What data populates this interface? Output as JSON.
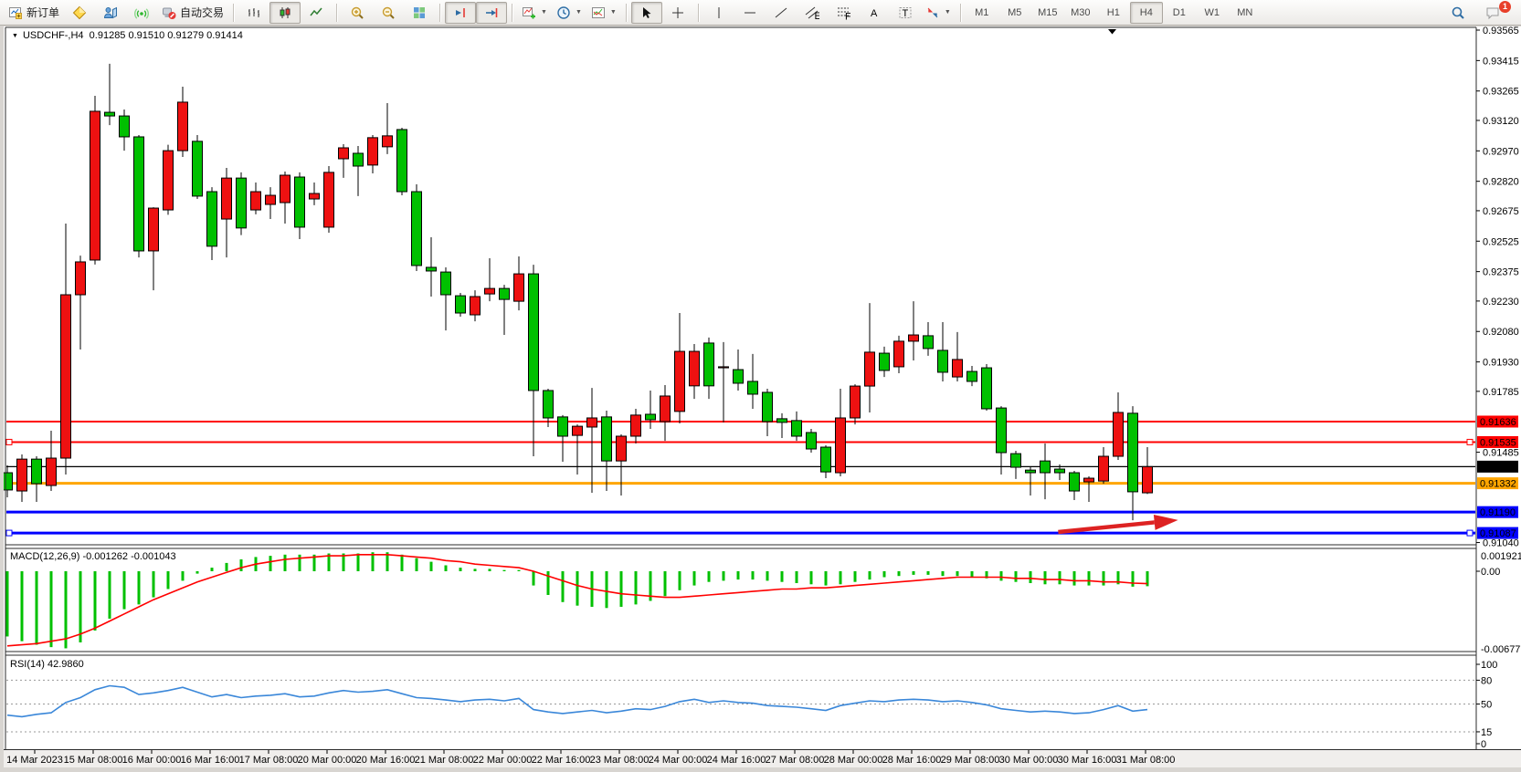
{
  "toolbar": {
    "groups": [
      [
        {
          "name": "new-order-button",
          "icon": "new-order",
          "label": "新订单"
        },
        {
          "name": "gold-chart-button",
          "icon": "gold"
        },
        {
          "name": "market-watch-button",
          "icon": "market-watch"
        },
        {
          "name": "signals-button",
          "icon": "signals"
        },
        {
          "name": "autotrading-button",
          "icon": "autotrade",
          "label": "自动交易"
        }
      ],
      [
        {
          "name": "bar-chart-button",
          "icon": "chart-bars"
        },
        {
          "name": "candlestick-chart-button",
          "icon": "chart-candles",
          "active": true
        },
        {
          "name": "line-chart-button",
          "icon": "chart-line"
        }
      ],
      [
        {
          "name": "zoom-in-button",
          "icon": "zoom-in"
        },
        {
          "name": "zoom-out-button",
          "icon": "zoom-out"
        },
        {
          "name": "tile-windows-button",
          "icon": "tile-windows"
        }
      ],
      [
        {
          "name": "chart-shift-button",
          "icon": "chart-shift",
          "active": true
        },
        {
          "name": "auto-scroll-button",
          "icon": "auto-scroll",
          "active": true
        }
      ],
      [
        {
          "name": "indicators-button",
          "icon": "indicators",
          "dropdown": true
        },
        {
          "name": "periods-button",
          "icon": "clock",
          "dropdown": true
        },
        {
          "name": "templates-button",
          "icon": "template",
          "dropdown": true
        }
      ],
      [
        {
          "name": "cursor-button",
          "icon": "cursor",
          "active": true
        },
        {
          "name": "crosshair-button",
          "icon": "crosshair"
        }
      ],
      [
        {
          "name": "vertical-line-button",
          "icon": "vline"
        },
        {
          "name": "horizontal-line-button",
          "icon": "hline"
        },
        {
          "name": "trendline-button",
          "icon": "trendline"
        },
        {
          "name": "equidistant-channel-button",
          "icon": "channel"
        },
        {
          "name": "fibonacci-button",
          "icon": "fibo"
        },
        {
          "name": "text-button",
          "icon": "text"
        },
        {
          "name": "text-label-button",
          "icon": "label"
        },
        {
          "name": "arrows-button",
          "icon": "arrows",
          "dropdown": true
        }
      ]
    ],
    "timeframes": [
      "M1",
      "M5",
      "M15",
      "M30",
      "H1",
      "H4",
      "D1",
      "W1",
      "MN"
    ],
    "active_timeframe": "H4",
    "right": [
      {
        "name": "search-button",
        "icon": "search"
      },
      {
        "name": "notifications-button",
        "icon": "chat",
        "badge": "1"
      }
    ]
  },
  "chart": {
    "title_text": "USDCHF-,H4  0.91285 0.91510 0.91279 0.91414",
    "macd_label": "MACD(12,26,9) -0.001262 -0.001043",
    "rsi_label": "RSI(14) 42.9860"
  },
  "chart_data": {
    "type": "candlestick",
    "symbol": "USDCHF-",
    "period": "H4",
    "last_bar": {
      "open": 0.91285,
      "high": 0.9151,
      "low": 0.91279,
      "close": 0.91414
    },
    "bull_color": "#ee1111",
    "bear_color": "#00c000",
    "outline_color": "#000000",
    "price_axis": {
      "ticks": [
        "0.93565",
        "0.93415",
        "0.93265",
        "0.93120",
        "0.92970",
        "0.92820",
        "0.92675",
        "0.92525",
        "0.92375",
        "0.92230",
        "0.92080",
        "0.91930",
        "0.91785",
        "0.91485",
        "0.91040"
      ],
      "label_boxes": [
        {
          "value": "0.91636",
          "color": "#ff0000"
        },
        {
          "value": "0.91535",
          "color": "#ff0000"
        },
        {
          "value": "0.91414",
          "color": "#000000"
        },
        {
          "value": "0.91332",
          "color": "#ffa500"
        },
        {
          "value": "0.91190",
          "color": "#0000ff"
        },
        {
          "value": "0.91087",
          "color": "#0000ff"
        }
      ]
    },
    "hlines": [
      {
        "price": 0.91636,
        "color": "#ff0000",
        "width": 2,
        "selected": false
      },
      {
        "price": 0.91535,
        "color": "#ff0000",
        "width": 2,
        "selected": true
      },
      {
        "price": 0.91332,
        "color": "#ffa500",
        "width": 3,
        "selected": false
      },
      {
        "price": 0.9119,
        "color": "#0000ff",
        "width": 3,
        "selected": false
      },
      {
        "price": 0.91087,
        "color": "#0000ff",
        "width": 3,
        "selected": true
      }
    ],
    "bid_line": {
      "price": 0.91414,
      "color": "#000000"
    },
    "annotation_arrow": {
      "from_bar": 71.9,
      "from_price": 0.91092,
      "to_bar": 80.1,
      "to_price": 0.91151,
      "color": "#dd2222"
    },
    "time_labels": [
      "14 Mar 2023",
      "15 Mar 08:00",
      "16 Mar 00:00",
      "16 Mar 16:00",
      "17 Mar 08:00",
      "20 Mar 00:00",
      "20 Mar 16:00",
      "21 Mar 08:00",
      "22 Mar 00:00",
      "22 Mar 16:00",
      "23 Mar 08:00",
      "24 Mar 00:00",
      "24 Mar 16:00",
      "27 Mar 08:00",
      "28 Mar 00:00",
      "28 Mar 16:00",
      "29 Mar 08:00",
      "30 Mar 00:00",
      "30 Mar 16:00",
      "31 Mar 08:00"
    ],
    "candles": [
      [
        0.91384,
        0.9142,
        0.91263,
        0.91299
      ],
      [
        0.91294,
        0.91474,
        0.9124,
        0.91451
      ],
      [
        0.91451,
        0.91465,
        0.9124,
        0.9133
      ],
      [
        0.91321,
        0.91591,
        0.91294,
        0.91456
      ],
      [
        0.91456,
        0.92612,
        0.91375,
        0.92261
      ],
      [
        0.92261,
        0.92454,
        0.91991,
        0.92423
      ],
      [
        0.92432,
        0.93241,
        0.9241,
        0.93165
      ],
      [
        0.9316,
        0.93399,
        0.93097,
        0.93142
      ],
      [
        0.93142,
        0.93174,
        0.92971,
        0.93039
      ],
      [
        0.93039,
        0.93048,
        0.92445,
        0.92477
      ],
      [
        0.92477,
        0.92692,
        0.92283,
        0.92688
      ],
      [
        0.92679,
        0.93,
        0.92655,
        0.92971
      ],
      [
        0.92971,
        0.93286,
        0.9294,
        0.9321
      ],
      [
        0.93017,
        0.93048,
        0.92733,
        0.92747
      ],
      [
        0.92769,
        0.92791,
        0.92432,
        0.925
      ],
      [
        0.92634,
        0.92886,
        0.92445,
        0.92836
      ],
      [
        0.92836,
        0.92864,
        0.92555,
        0.9259
      ],
      [
        0.92679,
        0.92814,
        0.92657,
        0.92769
      ],
      [
        0.92706,
        0.92791,
        0.92634,
        0.92751
      ],
      [
        0.92715,
        0.92868,
        0.92612,
        0.9285
      ],
      [
        0.92841,
        0.92864,
        0.92535,
        0.92594
      ],
      [
        0.92733,
        0.92814,
        0.92702,
        0.9276
      ],
      [
        0.92594,
        0.92895,
        0.92567,
        0.92864
      ],
      [
        0.92931,
        0.93003,
        0.92837,
        0.92985
      ],
      [
        0.92958,
        0.92994,
        0.92747,
        0.92895
      ],
      [
        0.929,
        0.93048,
        0.92859,
        0.93035
      ],
      [
        0.9299,
        0.93205,
        0.92954,
        0.93044
      ],
      [
        0.93075,
        0.93084,
        0.92751,
        0.92769
      ],
      [
        0.92769,
        0.92805,
        0.92378,
        0.92405
      ],
      [
        0.92396,
        0.92544,
        0.92252,
        0.92378
      ],
      [
        0.92373,
        0.92396,
        0.92085,
        0.92261
      ],
      [
        0.92256,
        0.9227,
        0.92153,
        0.92171
      ],
      [
        0.92162,
        0.92283,
        0.9213,
        0.92252
      ],
      [
        0.92265,
        0.92441,
        0.92229,
        0.92292
      ],
      [
        0.92292,
        0.9231,
        0.92063,
        0.92238
      ],
      [
        0.92229,
        0.9245,
        0.92184,
        0.92364
      ],
      [
        0.92364,
        0.92409,
        0.91465,
        0.91789
      ],
      [
        0.91789,
        0.91798,
        0.91609,
        0.91654
      ],
      [
        0.91659,
        0.91668,
        0.91438,
        0.91564
      ],
      [
        0.91568,
        0.91622,
        0.91375,
        0.91613
      ],
      [
        0.91609,
        0.91802,
        0.91285,
        0.91654
      ],
      [
        0.91659,
        0.9169,
        0.91294,
        0.91442
      ],
      [
        0.91442,
        0.91573,
        0.91272,
        0.91564
      ],
      [
        0.91564,
        0.91699,
        0.91528,
        0.91668
      ],
      [
        0.91672,
        0.91789,
        0.916,
        0.91645
      ],
      [
        0.91636,
        0.91816,
        0.91541,
        0.91762
      ],
      [
        0.91686,
        0.92171,
        0.91627,
        0.91982
      ],
      [
        0.91812,
        0.92018,
        0.91748,
        0.91982
      ],
      [
        0.92023,
        0.9205,
        0.91748,
        0.91812
      ],
      [
        0.91901,
        0.92028,
        0.91632,
        0.91906
      ],
      [
        0.91892,
        0.91991,
        0.91789,
        0.91825
      ],
      [
        0.91834,
        0.91969,
        0.91699,
        0.91771
      ],
      [
        0.9178,
        0.91798,
        0.91564,
        0.91636
      ],
      [
        0.9165,
        0.91677,
        0.91555,
        0.91632
      ],
      [
        0.91641,
        0.91686,
        0.91541,
        0.91564
      ],
      [
        0.91582,
        0.916,
        0.91483,
        0.91501
      ],
      [
        0.9151,
        0.91519,
        0.91357,
        0.91388
      ],
      [
        0.91384,
        0.91798,
        0.91366,
        0.91654
      ],
      [
        0.91654,
        0.9182,
        0.91622,
        0.91811
      ],
      [
        0.91811,
        0.9222,
        0.91681,
        0.91978
      ],
      [
        0.91973,
        0.92005,
        0.91856,
        0.91888
      ],
      [
        0.91906,
        0.92059,
        0.91874,
        0.92032
      ],
      [
        0.92032,
        0.92229,
        0.91937,
        0.92063
      ],
      [
        0.92059,
        0.92126,
        0.9196,
        0.91996
      ],
      [
        0.91987,
        0.92126,
        0.91834,
        0.91879
      ],
      [
        0.91856,
        0.92077,
        0.91834,
        0.91942
      ],
      [
        0.91883,
        0.9191,
        0.91811,
        0.91834
      ],
      [
        0.91901,
        0.91919,
        0.9169,
        0.91699
      ],
      [
        0.91703,
        0.91712,
        0.91375,
        0.91483
      ],
      [
        0.91478,
        0.91492,
        0.91353,
        0.91411
      ],
      [
        0.91397,
        0.91415,
        0.91272,
        0.91384
      ],
      [
        0.91442,
        0.91528,
        0.91253,
        0.91384
      ],
      [
        0.91402,
        0.91425,
        0.91348,
        0.91384
      ],
      [
        0.91384,
        0.91393,
        0.91249,
        0.91294
      ],
      [
        0.91339,
        0.91366,
        0.9124,
        0.91357
      ],
      [
        0.91343,
        0.9151,
        0.9133,
        0.91465
      ],
      [
        0.91465,
        0.9178,
        0.91447,
        0.91681
      ],
      [
        0.91677,
        0.91712,
        0.9115,
        0.9129
      ],
      [
        0.91285,
        0.9151,
        0.91279,
        0.91414
      ]
    ],
    "indicators": [
      {
        "name": "MACD",
        "label": "MACD(12,26,9) -0.001262 -0.001043",
        "params": [
          12,
          26,
          9
        ],
        "macd_value": -0.001262,
        "signal_value": -0.001043,
        "axis_labels": [
          "0.001921",
          "0.00",
          "-0.006777"
        ],
        "range": [
          -0.006777,
          0.001921
        ],
        "histogram_color": "#00c000",
        "signal_color": "#ff0000",
        "histogram": [
          -0.0055,
          -0.0059,
          -0.0062,
          -0.0064,
          -0.0065,
          -0.006,
          -0.005,
          -0.004,
          -0.0032,
          -0.0028,
          -0.0022,
          -0.0015,
          -0.0008,
          -0.0002,
          0.0003,
          0.0007,
          0.001,
          0.0012,
          0.0013,
          0.0014,
          0.0014,
          0.0014,
          0.0015,
          0.0015,
          0.0015,
          0.0016,
          0.0016,
          0.0014,
          0.0011,
          0.0008,
          0.0005,
          0.0003,
          0.0002,
          0.0002,
          0.0001,
          0.0001,
          -0.0012,
          -0.002,
          -0.0026,
          -0.0029,
          -0.003,
          -0.0031,
          -0.003,
          -0.0028,
          -0.0025,
          -0.0021,
          -0.0016,
          -0.0012,
          -0.0009,
          -0.0008,
          -0.0007,
          -0.0007,
          -0.0008,
          -0.0009,
          -0.001,
          -0.0011,
          -0.0012,
          -0.0011,
          -0.0009,
          -0.0007,
          -0.0005,
          -0.0004,
          -0.0003,
          -0.0003,
          -0.0004,
          -0.0004,
          -0.0005,
          -0.0006,
          -0.0008,
          -0.0009,
          -0.001,
          -0.0011,
          -0.0011,
          -0.0012,
          -0.0012,
          -0.0012,
          -0.0011,
          -0.0013,
          -0.001262
        ],
        "signal": [
          -0.0063,
          -0.0062,
          -0.0061,
          -0.0059,
          -0.0057,
          -0.0053,
          -0.0048,
          -0.0042,
          -0.0036,
          -0.003,
          -0.0024,
          -0.0019,
          -0.0014,
          -0.0009,
          -0.0005,
          -0.0001,
          0.0003,
          0.0006,
          0.0008,
          0.001,
          0.0011,
          0.0012,
          0.0013,
          0.0013,
          0.0014,
          0.0014,
          0.0014,
          0.0013,
          0.0012,
          0.0011,
          0.0009,
          0.0008,
          0.0006,
          0.0005,
          0.0004,
          0.0003,
          0.0,
          -0.0004,
          -0.0008,
          -0.0012,
          -0.0015,
          -0.0017,
          -0.0019,
          -0.002,
          -0.0021,
          -0.0022,
          -0.0022,
          -0.0021,
          -0.002,
          -0.0019,
          -0.0018,
          -0.0017,
          -0.0016,
          -0.0015,
          -0.0015,
          -0.0014,
          -0.0014,
          -0.0013,
          -0.0012,
          -0.0011,
          -0.001,
          -0.0009,
          -0.0008,
          -0.0007,
          -0.0006,
          -0.0005,
          -0.0005,
          -0.0005,
          -0.0005,
          -0.0006,
          -0.0006,
          -0.0007,
          -0.0007,
          -0.0008,
          -0.0008,
          -0.0009,
          -0.0009,
          -0.001,
          -0.001043
        ]
      },
      {
        "name": "RSI",
        "label": "RSI(14) 42.9860",
        "period": 14,
        "value": 42.986,
        "axis_labels": [
          "100",
          "80",
          "50",
          "15",
          "0"
        ],
        "levels": [
          80,
          50,
          15
        ],
        "range": [
          0,
          100
        ],
        "line_color": "#3a87d9",
        "values": [
          36,
          34,
          37,
          39,
          52,
          58,
          68,
          73,
          71,
          62,
          64,
          67,
          71,
          65,
          59,
          62,
          58,
          60,
          61,
          63,
          59,
          60,
          64,
          67,
          65,
          66,
          68,
          63,
          58,
          57,
          55,
          53,
          55,
          56,
          54,
          57,
          43,
          40,
          38,
          40,
          42,
          39,
          41,
          44,
          43,
          47,
          53,
          56,
          52,
          54,
          52,
          51,
          48,
          47,
          46,
          44,
          42,
          48,
          51,
          54,
          53,
          55,
          56,
          55,
          53,
          54,
          52,
          49,
          44,
          42,
          40,
          41,
          40,
          38,
          39,
          43,
          48,
          41,
          42.986
        ]
      }
    ]
  }
}
